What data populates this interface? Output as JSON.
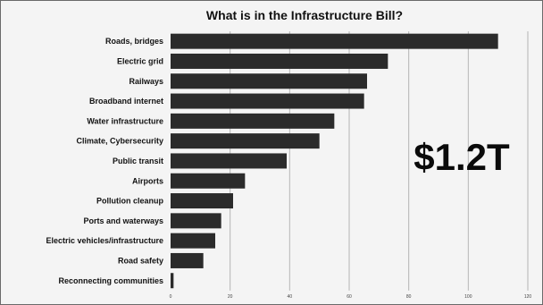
{
  "chart_data": {
    "type": "bar",
    "orientation": "horizontal",
    "title": "What is in the Infrastructure Bill?",
    "categories": [
      "Roads, bridges",
      "Electric grid",
      "Railways",
      "Broadband internet",
      "Water infrastructure",
      "Climate, Cybersecurity",
      "Public transit",
      "Airports",
      "Pollution cleanup",
      "Ports and waterways",
      "Electric vehicles/infrastructure",
      "Road safety",
      "Reconnecting communities"
    ],
    "values": [
      110,
      73,
      66,
      65,
      55,
      50,
      39,
      25,
      21,
      17,
      15,
      11,
      1
    ],
    "xlim": [
      0,
      120
    ],
    "xticks": [
      "0",
      "20",
      "40",
      "60",
      "80",
      "100",
      "120"
    ],
    "grid": true,
    "bar_color": "#2b2b2b",
    "annotation": "$1.2T"
  }
}
